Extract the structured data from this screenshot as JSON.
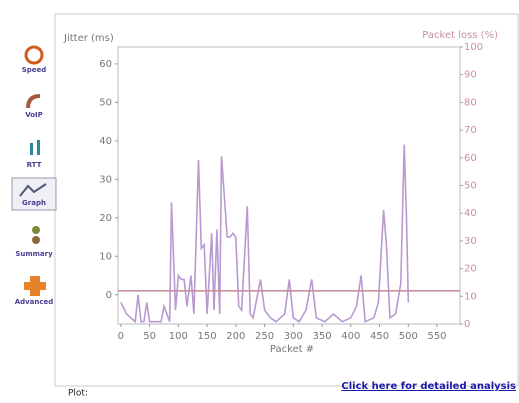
{
  "sidebar": {
    "tabs": [
      "Speed",
      "VoIP",
      "RTT",
      "Graph",
      "Summary",
      "Advanced"
    ]
  },
  "chart_data": {
    "type": "line",
    "y_label": "Jitter (ms)",
    "y2_label": "Packet loss (%)",
    "x_label": "Packet #",
    "xlim": [
      -5,
      590
    ],
    "xticks": [
      0,
      50,
      100,
      150,
      200,
      250,
      300,
      350,
      400,
      450,
      500,
      550
    ],
    "ylim": [
      -7.6,
      64.4
    ],
    "yticks": [
      0,
      10,
      20,
      30,
      40,
      50,
      60
    ],
    "y2lim": [
      0,
      100
    ],
    "y2ticks": [
      0,
      10,
      20,
      30,
      40,
      50,
      60,
      70,
      80,
      90,
      100
    ],
    "series": [
      {
        "color": "#b99ad0",
        "x": [
          0,
          10,
          25,
          30,
          35,
          40,
          45,
          50,
          55,
          60,
          70,
          75,
          85,
          88,
          95,
          100,
          105,
          110,
          115,
          122,
          127,
          135,
          140,
          145,
          150,
          158,
          162,
          167,
          172,
          175,
          185,
          190,
          195,
          200,
          205,
          210,
          220,
          225,
          230,
          243,
          250,
          260,
          270,
          285,
          293,
          300,
          310,
          322,
          332,
          340,
          355,
          370,
          385,
          400,
          410,
          418,
          425,
          440,
          448,
          457,
          462,
          468,
          478,
          487,
          493,
          497,
          500
        ],
        "values": [
          -2,
          -5,
          -7,
          0,
          -7,
          -7,
          -2,
          -7,
          -7,
          -7,
          -7,
          -3,
          -7,
          24,
          -4,
          5,
          4,
          4,
          -3,
          5,
          -5,
          35,
          12,
          13,
          -5,
          16,
          -4,
          17,
          -5,
          36,
          15,
          15,
          16,
          15,
          -3,
          -4,
          23,
          -5,
          -6,
          4,
          -4,
          -6,
          -7,
          -5,
          4,
          -6,
          -7,
          -4,
          4,
          -6,
          -7,
          -5,
          -7,
          -6,
          -3,
          5,
          -7,
          -6,
          -2,
          22,
          13,
          -6,
          -5,
          3,
          39,
          20,
          -2
        ]
      },
      {
        "color": "#c9909c",
        "axis": "y2",
        "x": [
          -5,
          590
        ],
        "values": [
          12,
          12
        ]
      }
    ]
  },
  "footer": {
    "plot_label": "Plot:",
    "link": "Click here for detailed analysis"
  }
}
